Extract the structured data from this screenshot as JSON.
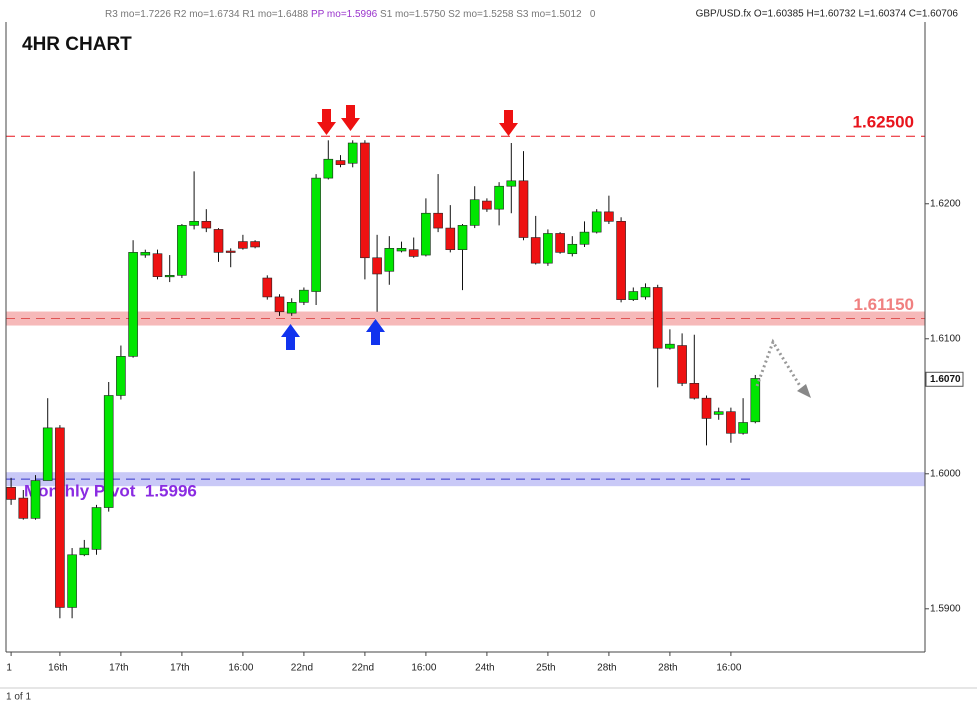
{
  "header": {
    "pivots_left": "R3 mo=1.7226 R2 mo=1.6734 R1 mo=1.6488",
    "pivot_pp": "PP mo=1.5996",
    "pivots_right": "S1 mo=1.5750 S2 mo=1.5258 S3 mo=1.5012",
    "counter": "0",
    "quote": "GBP/USD.fx O=1.60385 H=1.60732 L=1.60374 C=1.60706"
  },
  "chart_data": {
    "type": "candlestick",
    "title": "4HR CHART",
    "categories": [
      "1",
      null,
      null,
      null,
      "16th",
      null,
      null,
      null,
      null,
      "17th",
      null,
      null,
      null,
      null,
      "17th",
      null,
      null,
      null,
      null,
      "16:00",
      null,
      null,
      null,
      null,
      "22nd",
      null,
      null,
      null,
      null,
      "22nd",
      null,
      null,
      null,
      null,
      "16:00",
      null,
      null,
      null,
      null,
      "24th",
      null,
      null,
      null,
      null,
      "25th",
      null,
      null,
      null,
      null,
      "28th",
      null,
      null,
      null,
      null,
      "28th",
      null,
      null,
      null,
      null,
      "16:00",
      null,
      null
    ],
    "open": [
      1.599,
      1.5982,
      1.5967,
      1.5995,
      1.6034,
      1.5901,
      1.594,
      1.5944,
      1.5975,
      1.6058,
      1.6087,
      1.6162,
      1.6163,
      1.6146,
      1.6147,
      1.6184,
      1.6187,
      1.6181,
      1.6165,
      1.6172,
      1.6172,
      1.6145,
      1.6131,
      1.6119,
      1.6127,
      1.6135,
      1.6219,
      1.6232,
      1.623,
      1.6245,
      1.616,
      1.615,
      1.6165,
      1.6166,
      1.6162,
      1.6193,
      1.6182,
      1.6166,
      1.6184,
      1.6202,
      1.6196,
      1.6213,
      1.6217,
      1.6175,
      1.6156,
      1.6178,
      1.6163,
      1.617,
      1.6179,
      1.6194,
      1.6187,
      1.6129,
      1.6131,
      1.6138,
      1.6093,
      1.6095,
      1.6067,
      1.6056,
      1.6044,
      1.6046,
      1.603,
      1.60385
    ],
    "high": [
      1.5997,
      1.5988,
      1.5999,
      1.6056,
      1.6036,
      1.5945,
      1.5951,
      1.5977,
      1.6068,
      1.6095,
      1.6173,
      1.6166,
      1.6166,
      1.6162,
      1.6185,
      1.6224,
      1.6196,
      1.6182,
      1.6167,
      1.6177,
      1.6173,
      1.6147,
      1.6133,
      1.613,
      1.6138,
      1.6222,
      1.6247,
      1.6236,
      1.6247,
      1.6247,
      1.6177,
      1.6176,
      1.6172,
      1.6175,
      1.6204,
      1.6222,
      1.6199,
      1.6185,
      1.6213,
      1.6204,
      1.6216,
      1.6245,
      1.6239,
      1.6191,
      1.6181,
      1.6179,
      1.6176,
      1.6187,
      1.6196,
      1.6206,
      1.619,
      1.6138,
      1.6141,
      1.614,
      1.6107,
      1.6104,
      1.6103,
      1.6058,
      1.6049,
      1.6049,
      1.6056,
      1.60732
    ],
    "low": [
      1.5977,
      1.5966,
      1.5966,
      1.5995,
      1.5893,
      1.5893,
      1.5939,
      1.594,
      1.5972,
      1.6055,
      1.6086,
      1.616,
      1.6144,
      1.6142,
      1.6145,
      1.6181,
      1.6179,
      1.6157,
      1.6153,
      1.6166,
      1.6167,
      1.6129,
      1.6117,
      1.6117,
      1.6125,
      1.6125,
      1.6218,
      1.6227,
      1.6227,
      1.6144,
      1.612,
      1.614,
      1.6164,
      1.616,
      1.6161,
      1.6179,
      1.6164,
      1.6136,
      1.6182,
      1.6194,
      1.6184,
      1.6193,
      1.6173,
      1.6155,
      1.6154,
      1.6163,
      1.6161,
      1.6168,
      1.6178,
      1.6185,
      1.6127,
      1.6128,
      1.6129,
      1.6064,
      1.6092,
      1.6065,
      1.6055,
      1.6021,
      1.604,
      1.6023,
      1.6029,
      1.60374
    ],
    "close": [
      1.5981,
      1.5967,
      1.5995,
      1.6034,
      1.5901,
      1.594,
      1.5945,
      1.5975,
      1.6058,
      1.6087,
      1.6164,
      1.6164,
      1.6146,
      1.6147,
      1.6184,
      1.6187,
      1.6182,
      1.6164,
      1.6164,
      1.6167,
      1.6168,
      1.6131,
      1.612,
      1.6127,
      1.6136,
      1.6219,
      1.6233,
      1.6229,
      1.6245,
      1.616,
      1.6148,
      1.6167,
      1.6167,
      1.6161,
      1.6193,
      1.6182,
      1.6166,
      1.6184,
      1.6203,
      1.6196,
      1.6213,
      1.6217,
      1.6175,
      1.6156,
      1.6178,
      1.6164,
      1.617,
      1.6179,
      1.6194,
      1.6187,
      1.6129,
      1.6135,
      1.6138,
      1.6093,
      1.6096,
      1.6067,
      1.6056,
      1.6041,
      1.6046,
      1.603,
      1.6038,
      1.60706
    ],
    "up_color": "#00e600",
    "down_color": "#ee1111",
    "ylim": [
      1.5868,
      1.6345
    ],
    "yticks": [
      {
        "value": 1.59,
        "label": "1.5900"
      },
      {
        "value": 1.6,
        "label": "1.6000"
      },
      {
        "value": 1.61,
        "label": "1.6100"
      },
      {
        "value": 1.62,
        "label": "1.6200"
      }
    ],
    "price_marker": {
      "value": 1.607,
      "label": "1.6070"
    },
    "levels": [
      {
        "value": 1.625,
        "label": "1.62500",
        "color": "#e8141c",
        "line_color": "#e8141c",
        "label_side": "right"
      },
      {
        "value": 1.6115,
        "label": "1.61150",
        "color": "#f08080",
        "line_color": "#e05555",
        "band_color": "#f6b9b9",
        "label_side": "right"
      },
      {
        "value": 1.5996,
        "label": "Monthly Pivot  1.5996",
        "color": "#8a2be2",
        "line_color": "#3535c8",
        "band_color": "#c9c9f7",
        "label_side": "left"
      }
    ]
  },
  "footer": {
    "pages": "1 of 1"
  }
}
